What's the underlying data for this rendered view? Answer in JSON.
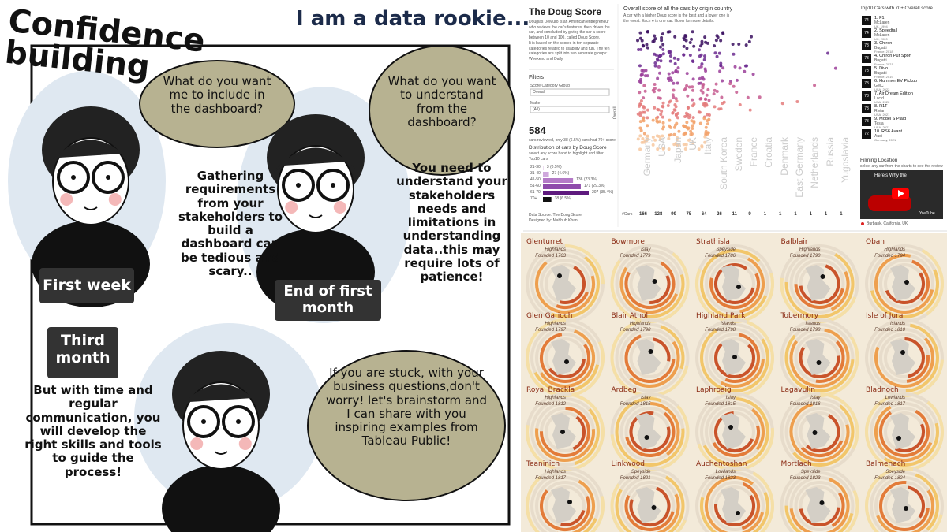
{
  "comic": {
    "title": "Confidence building",
    "subtitle": "I am a data rookie...",
    "panels": [
      {
        "label": "First week",
        "question": "What do you want me to include in the dashboard?",
        "caption": "Gathering requirements from your stakeholders to build a dashboard can be tedious and scary.."
      },
      {
        "label": "End of first month",
        "question": "What do you want to understand from the dashboard?",
        "caption": "You need to understand your stakeholders needs and limitations in understanding data..this may require lots of patience!"
      },
      {
        "label": "Third month",
        "question": "If you are stuck, with your business questions,don't worry! let's brainstorm and I can share with you inspiring examples from Tableau Public!",
        "caption": "But with time and regular communication, you will develop the right skills and tools to guide the process!"
      }
    ]
  },
  "doug_score": {
    "title": "The Doug Score",
    "intro": "Douglas DeMuro is an American entrepreneur who reviews the car's features, then drives the car, and concluded by giving the car a score between 10 and 100, called Doug Score.",
    "intro2": "It is based on the scores in ten separate categories related to usability and fun. The ten categories are split into two separate groups: Weekend and Daily.",
    "filters": "Filters",
    "filter_groups": [
      {
        "label": "Score Category Group",
        "value": "Overall"
      },
      {
        "label": "Make",
        "value": "(All)"
      }
    ],
    "total": "584",
    "total_note": "cars reviewed, only 38 (6.5%) cars had 70+ score",
    "dist_title": "Distribution of cars by Doug Score",
    "dist_note": "select any score band to highlight and filter Top10 cars",
    "bands": [
      {
        "band": "21-30",
        "label": "3 (0.5%)",
        "count": 3
      },
      {
        "band": "31-40",
        "label": "27 (4.6%)",
        "count": 27
      },
      {
        "band": "41-50",
        "label": "136 (23.3%)",
        "count": 136
      },
      {
        "band": "51-60",
        "label": "171 (29.3%)",
        "count": 171
      },
      {
        "band": "61-70",
        "label": "207 (35.4%)",
        "count": 207
      },
      {
        "band": "70+",
        "label": "38 (6.5%)",
        "count": 38
      }
    ],
    "source": "Data Source: The Doug Score",
    "designer": "Designed by: Mahbub Khan",
    "chart_title": "Overall score of all the cars by origin country",
    "chart_note": "A car with a higher Doug score is the best and a lower one is the worst. Each ● is one car. Hover for more details.",
    "y_label": "Overall",
    "count_label": "#Cars",
    "countries": [
      {
        "name": "Germany",
        "cars": 166
      },
      {
        "name": "USA",
        "cars": 128
      },
      {
        "name": "Japan",
        "cars": 99
      },
      {
        "name": "UK",
        "cars": 75
      },
      {
        "name": "Italy",
        "cars": 64
      },
      {
        "name": "South Korea",
        "cars": 26
      },
      {
        "name": "Sweden",
        "cars": 11
      },
      {
        "name": "France",
        "cars": 9
      },
      {
        "name": "Croatia",
        "cars": 1
      },
      {
        "name": "Denmark",
        "cars": 1
      },
      {
        "name": "East Germany",
        "cars": 1
      },
      {
        "name": "Netherlands",
        "cars": 1
      },
      {
        "name": "Russia",
        "cars": 1
      },
      {
        "name": "Yugoslavia",
        "cars": 1
      }
    ],
    "top_title": "Top10 Cars with 70+ Overall score",
    "top": [
      {
        "score": "74",
        "title": "1. F1",
        "make": "McLaren",
        "origin": "UK, 1994"
      },
      {
        "score": "74",
        "title": "2. Speedtail",
        "make": "McLaren",
        "origin": "UK, 2020"
      },
      {
        "score": "73",
        "title": "3. Chiron",
        "make": "Bugatti",
        "origin": "France, 2018"
      },
      {
        "score": "73",
        "title": "4. Chiron Pur Sport",
        "make": "Bugatti",
        "origin": "France, 2021"
      },
      {
        "score": "73",
        "title": "5. Divo",
        "make": "Bugatti",
        "origin": "France, 2019"
      },
      {
        "score": "73",
        "title": "6. Hummer EV Pickup",
        "make": "GMC",
        "origin": "USA, 2022"
      },
      {
        "score": "73",
        "title": "7. Air Dream Edition",
        "make": "Lucid",
        "origin": "USA, 2022"
      },
      {
        "score": "73",
        "title": "8. R1T",
        "make": "Rivian",
        "origin": "USA, 2021"
      },
      {
        "score": "73",
        "title": "9. Model S Plaid",
        "make": "Tesla",
        "origin": "USA, 2021"
      },
      {
        "score": "72",
        "title": "10. RS6 Avant",
        "make": "Audi",
        "origin": "Germany, 2021"
      }
    ],
    "filming_title": "Filming Location",
    "filming_note": "select any car from the charts to see the review",
    "video_title": "Here's Why the",
    "video_brand": "YouTube",
    "location": "Burbank, California, UK"
  },
  "whisky": {
    "distilleries": [
      {
        "name": "Glenturret",
        "region": "Highlands",
        "founded": "Founded 1763"
      },
      {
        "name": "Bowmore",
        "region": "Islay",
        "founded": "Founded 1779"
      },
      {
        "name": "Strathisla",
        "region": "Speyside",
        "founded": "Founded 1786"
      },
      {
        "name": "Balblair",
        "region": "Highlands",
        "founded": "Founded 1790"
      },
      {
        "name": "Oban",
        "region": "Highlands",
        "founded": "Founded 1794"
      },
      {
        "name": "Glen Garioch",
        "region": "Highlands",
        "founded": "Founded 1797"
      },
      {
        "name": "Blair Athol",
        "region": "Highlands",
        "founded": "Founded 1798"
      },
      {
        "name": "Highland Park",
        "region": "Islands",
        "founded": "Founded 1798"
      },
      {
        "name": "Tobermory",
        "region": "Islands",
        "founded": "Founded 1798"
      },
      {
        "name": "Isle of Jura",
        "region": "Islands",
        "founded": "Founded 1810"
      },
      {
        "name": "Royal Brackla",
        "region": "Highlands",
        "founded": "Founded 1812"
      },
      {
        "name": "Ardbeg",
        "region": "Islay",
        "founded": "Founded 1815"
      },
      {
        "name": "Laphroaig",
        "region": "Islay",
        "founded": "Founded 1815"
      },
      {
        "name": "Lagavulin",
        "region": "Islay",
        "founded": "Founded 1816"
      },
      {
        "name": "Bladnoch",
        "region": "Lowlands",
        "founded": "Founded 1817"
      },
      {
        "name": "Teaninich",
        "region": "Highlands",
        "founded": "Founded 1817"
      },
      {
        "name": "Linkwood",
        "region": "Speyside",
        "founded": "Founded 1821"
      },
      {
        "name": "Auchentoshan",
        "region": "Lowlands",
        "founded": "Founded 1823"
      },
      {
        "name": "Mortlach",
        "region": "Speyside",
        "founded": "Founded 1823"
      },
      {
        "name": "Balmenach",
        "region": "Speyside",
        "founded": "Founded 1824"
      }
    ]
  }
}
